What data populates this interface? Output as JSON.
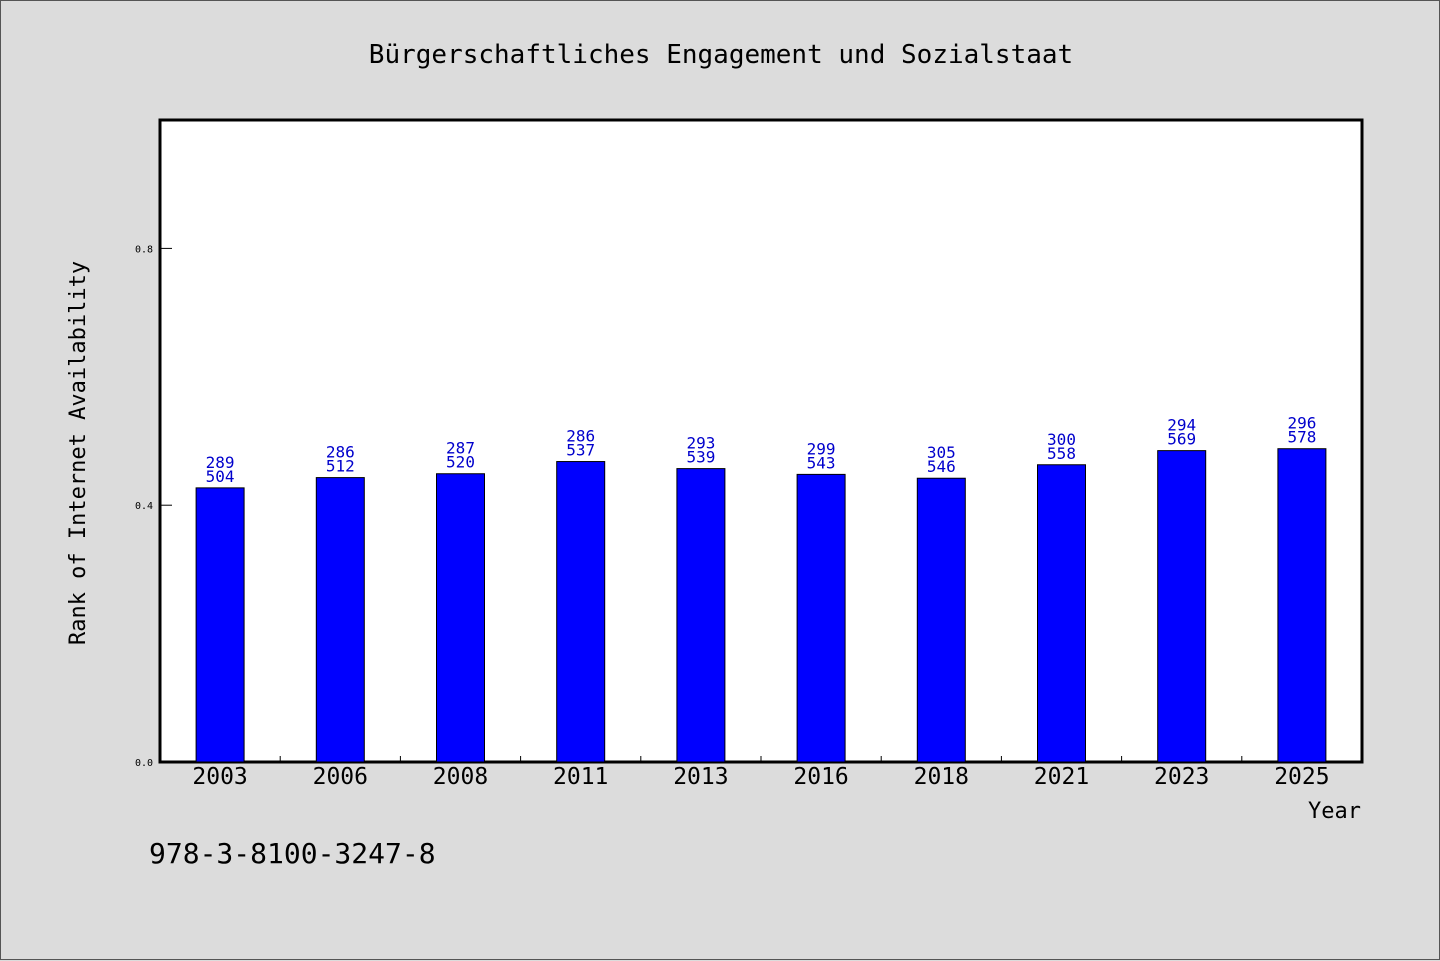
{
  "chart_data": {
    "type": "bar",
    "title": "Bürgerschaftliches Engagement und Sozialstaat",
    "xlabel": "Year",
    "ylabel": "Rank of Internet Availability",
    "categories": [
      "2003",
      "2006",
      "2008",
      "2011",
      "2013",
      "2016",
      "2018",
      "2021",
      "2023",
      "2025"
    ],
    "values": [
      0.427,
      0.443,
      0.449,
      0.468,
      0.457,
      0.448,
      0.442,
      0.463,
      0.485,
      0.488
    ],
    "bar_labels_top": [
      "289",
      "286",
      "287",
      "286",
      "293",
      "299",
      "305",
      "300",
      "294",
      "296"
    ],
    "bar_labels_bottom": [
      "504",
      "512",
      "520",
      "537",
      "539",
      "543",
      "546",
      "558",
      "569",
      "578"
    ],
    "yticks": [
      "0.0",
      "0.4",
      "0.8"
    ],
    "ytick_values": [
      0.0,
      0.4,
      0.8
    ],
    "ylim": [
      0.0,
      1.0
    ],
    "grid": false,
    "bar_color": "#0000ff",
    "label_color": "#0000cc",
    "background_color": "#dcdcdc",
    "plot_background_color": "#ffffff"
  },
  "footer": {
    "isbn": "978-3-8100-3247-8"
  }
}
